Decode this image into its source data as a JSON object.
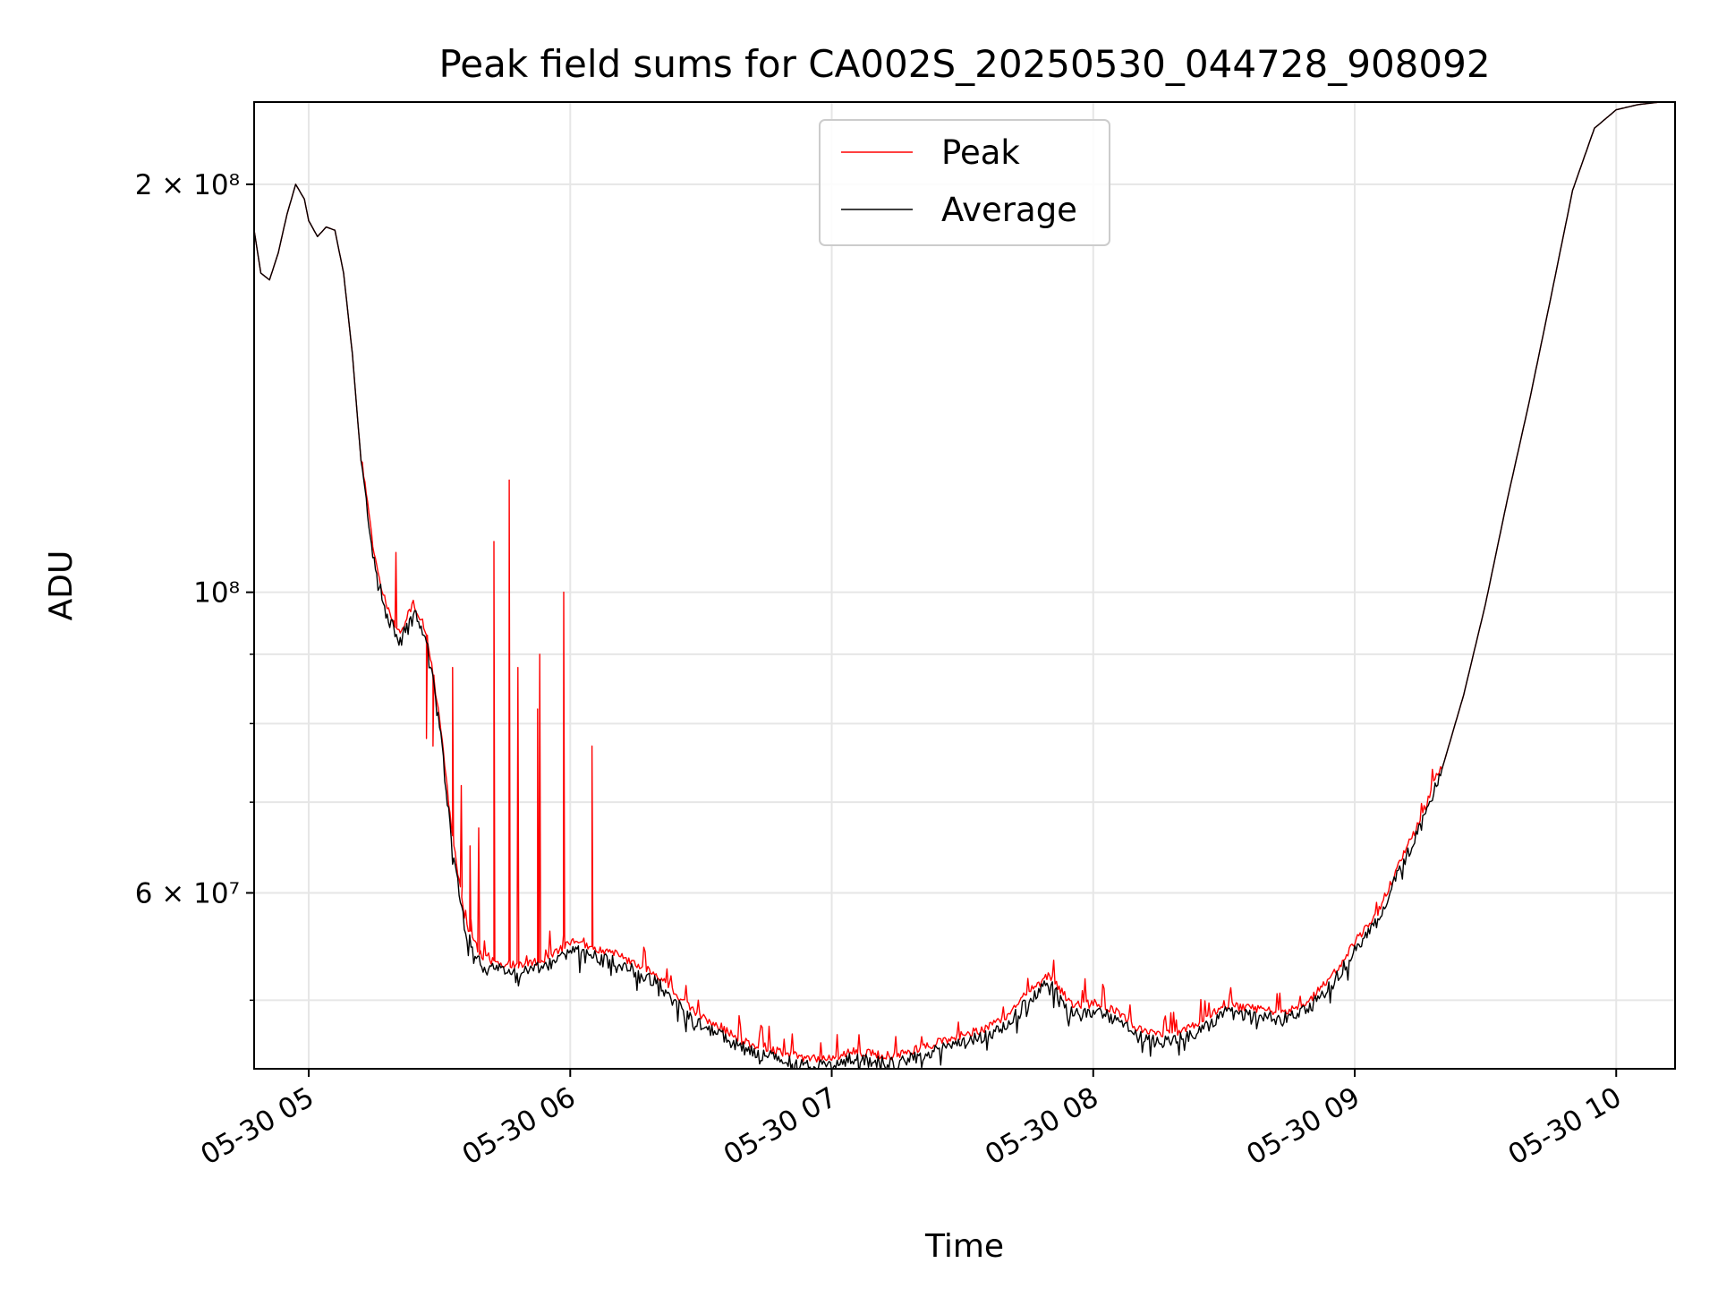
{
  "chart_data": {
    "type": "line",
    "title": "Peak field sums for CA002S_20250530_044728_908092",
    "xlabel": "Time",
    "ylabel": "ADU",
    "yscale": "log",
    "xlim": [
      "2025-05-30 04:47:28",
      "2025-05-30 10:13:30"
    ],
    "ylim": [
      44500000,
      230000000
    ],
    "grid": true,
    "legend_position": "upper center",
    "x_ticks": [
      {
        "value": "2025-05-30 05:00",
        "label": "05-30 05"
      },
      {
        "value": "2025-05-30 06:00",
        "label": "05-30 06"
      },
      {
        "value": "2025-05-30 07:00",
        "label": "05-30 07"
      },
      {
        "value": "2025-05-30 08:00",
        "label": "05-30 08"
      },
      {
        "value": "2025-05-30 09:00",
        "label": "05-30 09"
      },
      {
        "value": "2025-05-30 10:00",
        "label": "05-30 10"
      }
    ],
    "y_major_ticks": [
      {
        "value": 60000000,
        "label": "6 × 10⁷"
      },
      {
        "value": 100000000,
        "label": "10⁸"
      },
      {
        "value": 200000000,
        "label": "2 × 10⁸"
      }
    ],
    "y_minor_ticks": [
      50000000,
      70000000,
      80000000,
      90000000
    ],
    "series": [
      {
        "name": "Average",
        "color": "#000000",
        "x": [
          "2025-05-30 04:47:28",
          "2025-05-30 04:49:00",
          "2025-05-30 04:51:00",
          "2025-05-30 04:53:00",
          "2025-05-30 04:55:00",
          "2025-05-30 04:57:00",
          "2025-05-30 04:59:00",
          "2025-05-30 05:00:00",
          "2025-05-30 05:02:00",
          "2025-05-30 05:04:00",
          "2025-05-30 05:06:00",
          "2025-05-30 05:08:00",
          "2025-05-30 05:10:00",
          "2025-05-30 05:12:00",
          "2025-05-30 05:15:00",
          "2025-05-30 05:18:00",
          "2025-05-30 05:21:00",
          "2025-05-30 05:24:00",
          "2025-05-30 05:27:00",
          "2025-05-30 05:30:00",
          "2025-05-30 05:33:00",
          "2025-05-30 05:36:00",
          "2025-05-30 05:40:00",
          "2025-05-30 05:45:00",
          "2025-05-30 05:50:00",
          "2025-05-30 05:55:00",
          "2025-05-30 06:00:00",
          "2025-05-30 06:05:00",
          "2025-05-30 06:10:00",
          "2025-05-30 06:15:00",
          "2025-05-30 06:20:00",
          "2025-05-30 06:25:00",
          "2025-05-30 06:30:00",
          "2025-05-30 06:35:00",
          "2025-05-30 06:40:00",
          "2025-05-30 06:45:00",
          "2025-05-30 06:50:00",
          "2025-05-30 06:55:00",
          "2025-05-30 07:00:00",
          "2025-05-30 07:05:00",
          "2025-05-30 07:10:00",
          "2025-05-30 07:15:00",
          "2025-05-30 07:20:00",
          "2025-05-30 07:25:00",
          "2025-05-30 07:30:00",
          "2025-05-30 07:35:00",
          "2025-05-30 07:40:00",
          "2025-05-30 07:45:00",
          "2025-05-30 07:50:00",
          "2025-05-30 07:55:00",
          "2025-05-30 08:00:00",
          "2025-05-30 08:05:00",
          "2025-05-30 08:10:00",
          "2025-05-30 08:15:00",
          "2025-05-30 08:20:00",
          "2025-05-30 08:25:00",
          "2025-05-30 08:30:00",
          "2025-05-30 08:35:00",
          "2025-05-30 08:40:00",
          "2025-05-30 08:45:00",
          "2025-05-30 08:50:00",
          "2025-05-30 08:55:00",
          "2025-05-30 09:00:00",
          "2025-05-30 09:05:00",
          "2025-05-30 09:10:00",
          "2025-05-30 09:15:00",
          "2025-05-30 09:20:00",
          "2025-05-30 09:25:00",
          "2025-05-30 09:30:00",
          "2025-05-30 09:35:00",
          "2025-05-30 09:40:00",
          "2025-05-30 09:45:00",
          "2025-05-30 09:50:00",
          "2025-05-30 09:55:00",
          "2025-05-30 10:00:00",
          "2025-05-30 10:05:00",
          "2025-05-30 10:10:00",
          "2025-05-30 10:13:30"
        ],
        "values": [
          185000000,
          172000000,
          170000000,
          178000000,
          190000000,
          200000000,
          195000000,
          188000000,
          183000000,
          186000000,
          185000000,
          172000000,
          150000000,
          125000000,
          105000000,
          96000000,
          92000000,
          97000000,
          92000000,
          80000000,
          65000000,
          56000000,
          53000000,
          52500000,
          52500000,
          53000000,
          54500000,
          54000000,
          53500000,
          52500000,
          51500000,
          49500000,
          48000000,
          47000000,
          46000000,
          45500000,
          45000000,
          44700000,
          44700000,
          45300000,
          45000000,
          44900000,
          45500000,
          46000000,
          46500000,
          47000000,
          48000000,
          50000000,
          51500000,
          49000000,
          49000000,
          48500000,
          47000000,
          46500000,
          46800000,
          47500000,
          49000000,
          48700000,
          48500000,
          48500000,
          49500000,
          51500000,
          54500000,
          57000000,
          62000000,
          67000000,
          74000000,
          84000000,
          98000000,
          117000000,
          138000000,
          165000000,
          198000000,
          220000000,
          227000000,
          229000000,
          230000000,
          230000000
        ]
      },
      {
        "name": "Peak",
        "color": "#ff0000",
        "spikes": [
          {
            "x": "2025-05-30 05:20:00",
            "value": 107000000
          },
          {
            "x": "2025-05-30 05:27:00",
            "value": 78000000
          },
          {
            "x": "2025-05-30 05:28:30",
            "value": 77000000
          },
          {
            "x": "2025-05-30 05:33:00",
            "value": 88000000
          },
          {
            "x": "2025-05-30 05:35:00",
            "value": 72000000
          },
          {
            "x": "2025-05-30 05:37:00",
            "value": 65000000
          },
          {
            "x": "2025-05-30 05:39:00",
            "value": 67000000
          },
          {
            "x": "2025-05-30 05:42:30",
            "value": 109000000
          },
          {
            "x": "2025-05-30 05:46:00",
            "value": 121000000
          },
          {
            "x": "2025-05-30 05:48:00",
            "value": 88000000
          },
          {
            "x": "2025-05-30 05:52:30",
            "value": 82000000
          },
          {
            "x": "2025-05-30 05:53:00",
            "value": 90000000
          },
          {
            "x": "2025-05-30 05:58:30",
            "value": 100000000
          },
          {
            "x": "2025-05-30 06:05:00",
            "value": 77000000
          }
        ]
      }
    ]
  }
}
